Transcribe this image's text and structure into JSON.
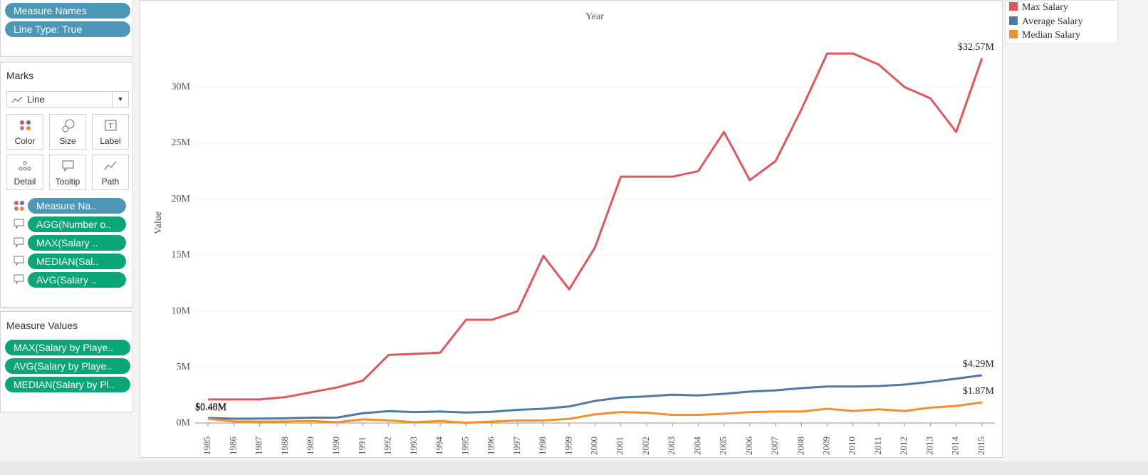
{
  "rows_shelf": {
    "pills": [
      "Measure Names",
      "Line Type: True"
    ]
  },
  "marks": {
    "title": "Marks",
    "mark_type": "Line",
    "buttons": [
      "Color",
      "Size",
      "Label",
      "Detail",
      "Tooltip",
      "Path"
    ],
    "pills": [
      "Measure Na..",
      "AGG(Number o..",
      "MAX(Salary ..",
      "MEDIAN(Sal..",
      "AVG(Salary .."
    ]
  },
  "measure_values": {
    "title": "Measure Values",
    "pills": [
      "MAX(Salary by Playe..",
      "AVG(Salary by Playe..",
      "MEDIAN(Salary by Pl.."
    ]
  },
  "chart_data": {
    "type": "line",
    "x_label": "Year",
    "y_label": "Value",
    "x": [
      1985,
      1986,
      1987,
      1988,
      1989,
      1990,
      1991,
      1992,
      1993,
      1994,
      1995,
      1996,
      1997,
      1998,
      1999,
      2000,
      2001,
      2002,
      2003,
      2004,
      2005,
      2006,
      2007,
      2008,
      2009,
      2010,
      2011,
      2012,
      2013,
      2014,
      2015
    ],
    "xlim": [
      1984.5,
      2015.5
    ],
    "ylim": [
      -0.8,
      35.8
    ],
    "yticks": [
      {
        "value": 0,
        "label": "0M"
      },
      {
        "value": 5,
        "label": "5M"
      },
      {
        "value": 10,
        "label": "10M"
      },
      {
        "value": 15,
        "label": "15M"
      },
      {
        "value": 20,
        "label": "20M"
      },
      {
        "value": 25,
        "label": "25M"
      },
      {
        "value": 30,
        "label": "30M"
      }
    ],
    "grid": true,
    "series": [
      {
        "name": "Max Salary",
        "color": "#e15759",
        "values": [
          2.13,
          2.13,
          2.13,
          2.34,
          2.77,
          3.2,
          3.8,
          6.1,
          6.2,
          6.3,
          9.24,
          9.24,
          10.0,
          14.94,
          11.95,
          15.7,
          22.0,
          22.0,
          22.0,
          22.5,
          26.0,
          21.7,
          23.4,
          28.0,
          33.0,
          33.0,
          32.0,
          30.0,
          29.0,
          26.0,
          32.57
        ],
        "value_labels": [
          null,
          null,
          null,
          null,
          null,
          null,
          null,
          null,
          null,
          null,
          null,
          null,
          null,
          null,
          null,
          null,
          null,
          null,
          null,
          null,
          null,
          null,
          null,
          null,
          null,
          null,
          null,
          null,
          null,
          null,
          "$32.57M"
        ]
      },
      {
        "name": "Average Salary",
        "color": "#4e79a7",
        "values": [
          0.48,
          0.41,
          0.42,
          0.45,
          0.5,
          0.51,
          0.9,
          1.08,
          1.0,
          1.05,
          0.96,
          1.03,
          1.2,
          1.3,
          1.5,
          2.0,
          2.3,
          2.4,
          2.55,
          2.49,
          2.63,
          2.83,
          2.94,
          3.14,
          3.28,
          3.28,
          3.32,
          3.46,
          3.7,
          3.98,
          4.29
        ],
        "value_labels": [
          "$0.48M",
          null,
          null,
          null,
          null,
          null,
          null,
          null,
          null,
          null,
          null,
          null,
          null,
          null,
          null,
          null,
          null,
          null,
          null,
          null,
          null,
          null,
          null,
          null,
          null,
          null,
          null,
          null,
          null,
          null,
          "$4.29M"
        ]
      },
      {
        "name": "Median Salary",
        "color": "#f28e2b",
        "values": [
          0.4,
          0.17,
          0.15,
          0.16,
          0.2,
          0.1,
          0.35,
          0.26,
          0.1,
          0.2,
          0.05,
          0.15,
          0.25,
          0.25,
          0.4,
          0.8,
          1.0,
          0.95,
          0.75,
          0.75,
          0.85,
          1.0,
          1.05,
          1.05,
          1.3,
          1.1,
          1.25,
          1.1,
          1.4,
          1.55,
          1.87
        ],
        "value_labels": [
          "$0.40M",
          null,
          null,
          null,
          null,
          null,
          null,
          null,
          null,
          null,
          null,
          null,
          null,
          null,
          null,
          null,
          null,
          null,
          null,
          null,
          null,
          null,
          null,
          null,
          null,
          null,
          null,
          null,
          null,
          null,
          "$1.87M"
        ]
      }
    ]
  }
}
